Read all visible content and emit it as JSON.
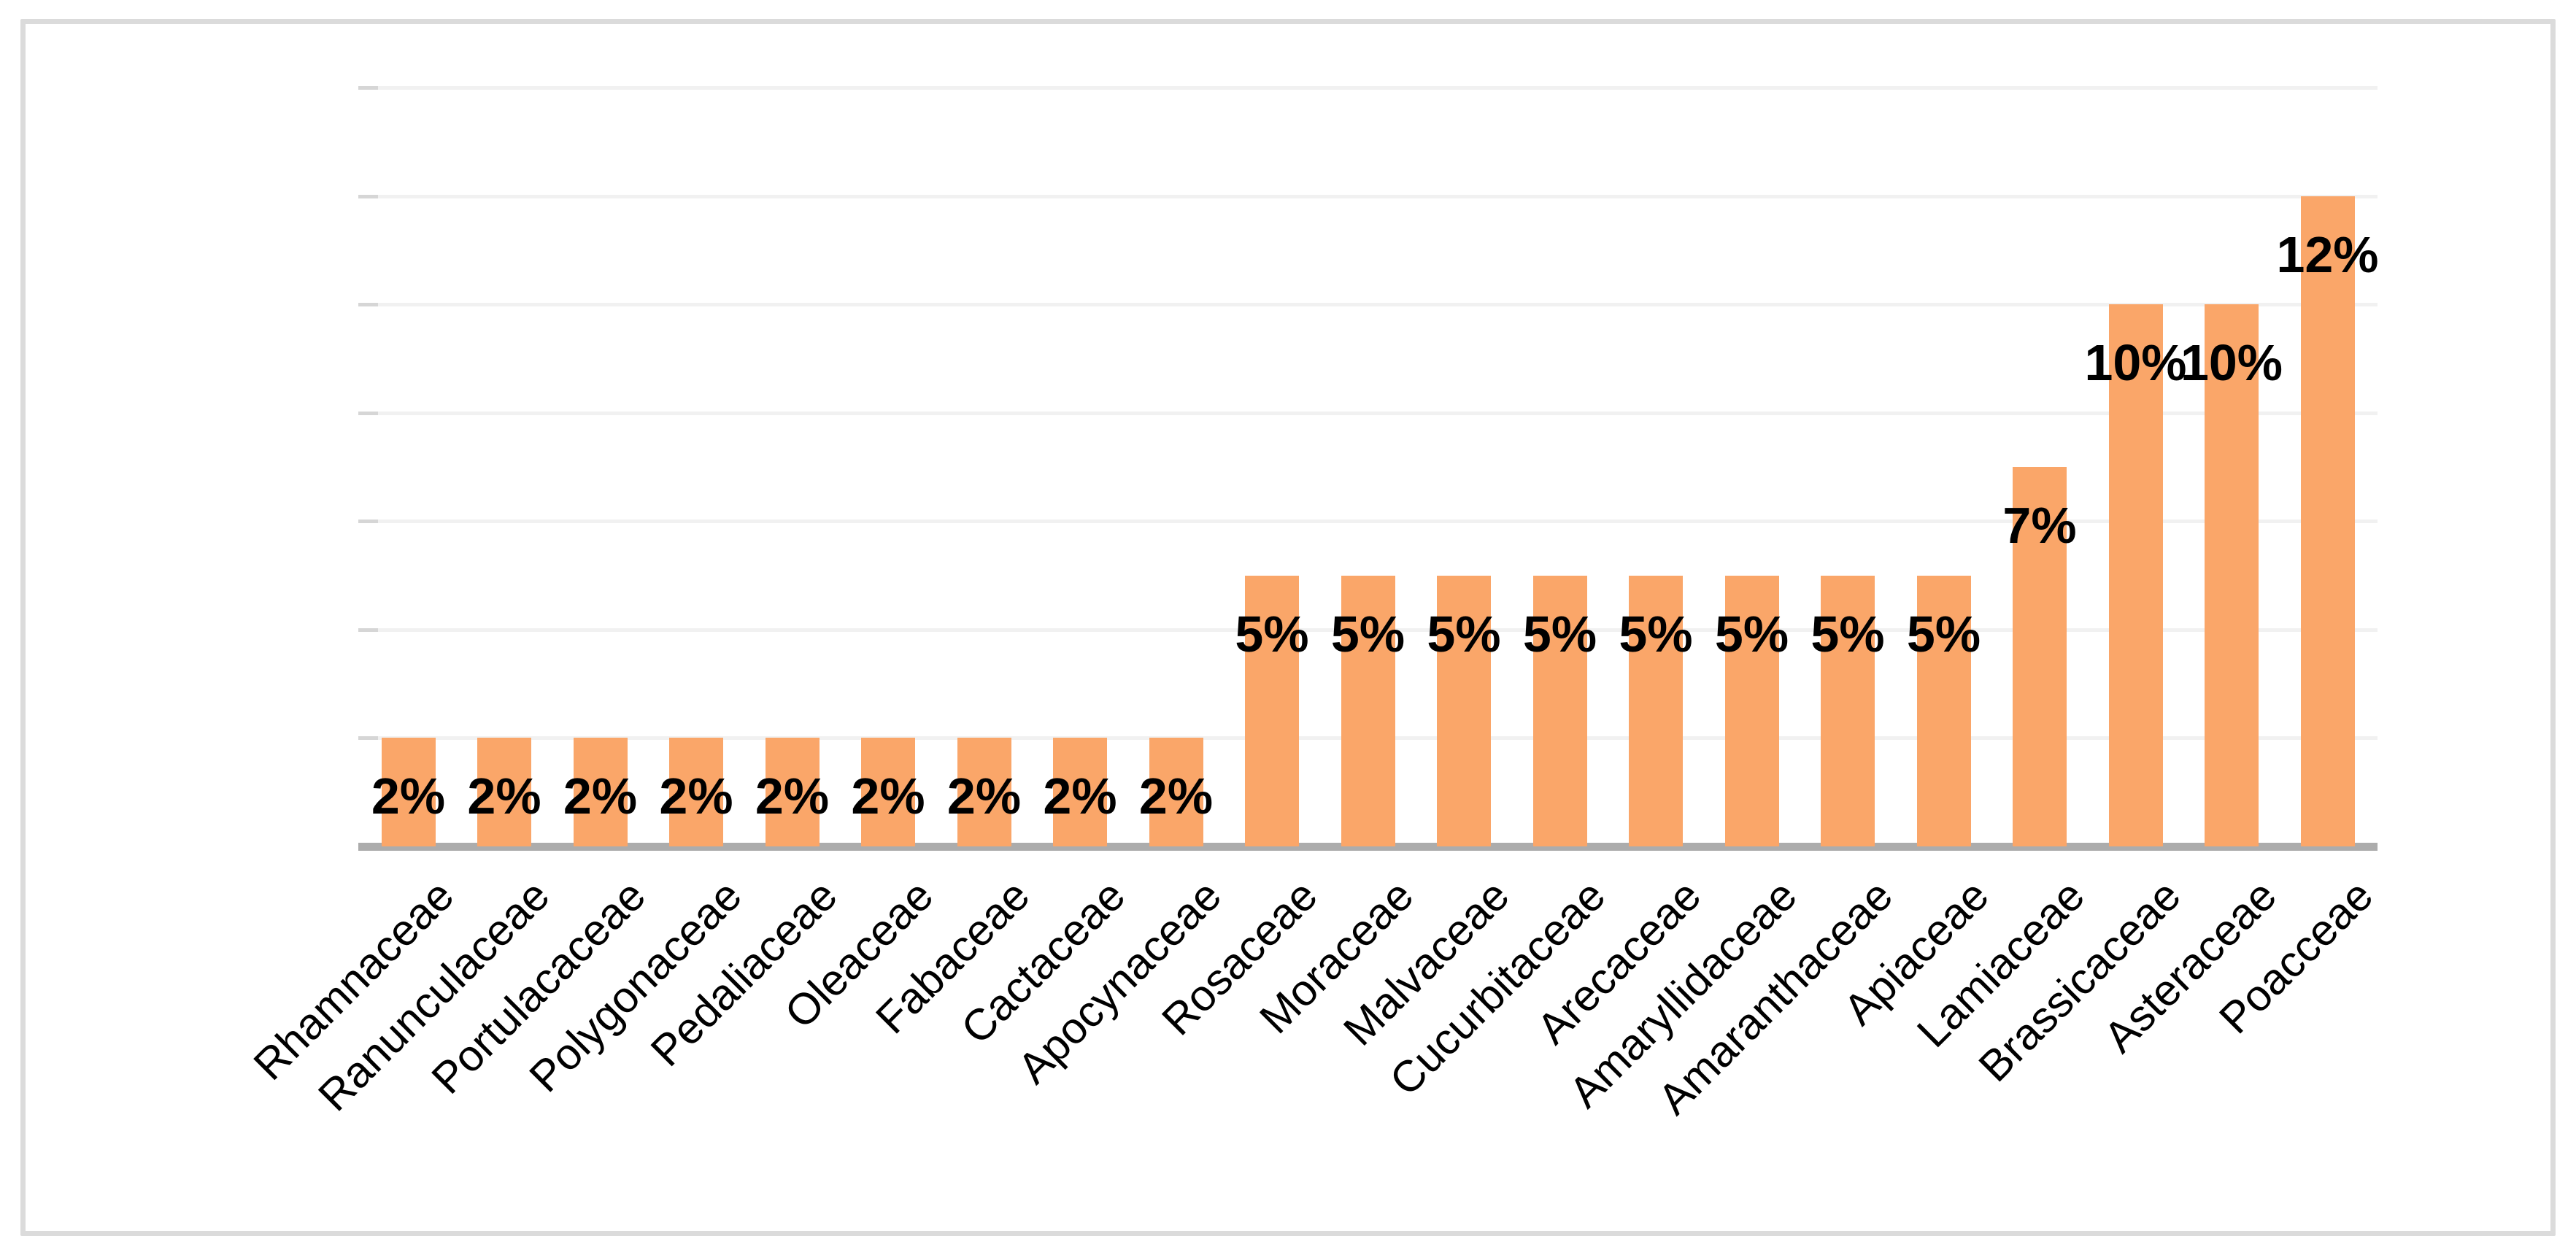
{
  "chart_data": {
    "type": "bar",
    "title": "",
    "xlabel": "",
    "ylabel": "",
    "categories": [
      "Rhamnaceae",
      "Ranunculaceae",
      "Portulacaceae",
      "Polygonaceae",
      "Pedaliaceae",
      "Oleaceae",
      "Fabaceae",
      "Cactaceae",
      "Apocynaceae",
      "Rosaceae",
      "Moraceae",
      "Malvaceae",
      "Cucurbitaceae",
      "Arecaceae",
      "Amaryllidaceae",
      "Amaranthaceae",
      "Apiaceae",
      "Lamiaceae",
      "Brassicaceae",
      "Asteraceae",
      "Poacceae"
    ],
    "values": [
      2,
      2,
      2,
      2,
      2,
      2,
      2,
      2,
      2,
      5,
      5,
      5,
      5,
      5,
      5,
      5,
      5,
      7,
      10,
      10,
      12
    ],
    "data_labels": [
      "2%",
      "2%",
      "2%",
      "2%",
      "2%",
      "2%",
      "2%",
      "2%",
      "2%",
      "5%",
      "5%",
      "5%",
      "5%",
      "5%",
      "5%",
      "5%",
      "5%",
      "7%",
      "10%",
      "10%",
      "12%"
    ],
    "unit": "%",
    "ylim": [
      0,
      14
    ],
    "grid_step": 2,
    "grid": true,
    "legend": false,
    "y_axis_tick_labels_visible": false,
    "x_label_rotation_deg": -45,
    "data_label_position": "inside-end",
    "colors": {
      "bar_fill": "#FAA669",
      "axis_line": "#ACACAC",
      "gridline": "#F1F1F1",
      "tick": "#D6D6D6",
      "frame_border": "#DBDBDB",
      "label_text": "#000000"
    }
  }
}
